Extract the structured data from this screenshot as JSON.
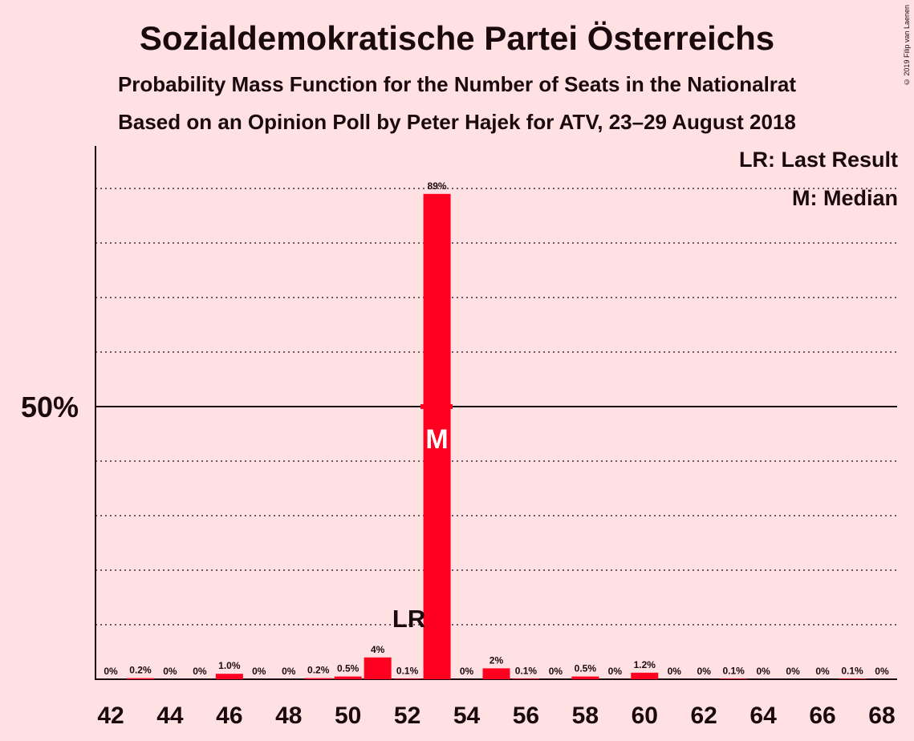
{
  "title": "Sozialdemokratische Partei Österreichs",
  "subtitle1": "Probability Mass Function for the Number of Seats in the Nationalrat",
  "subtitle2": "Based on an Opinion Poll by Peter Hajek for ATV, 23–29 August 2018",
  "copyright": "© 2019 Filip van Laenen",
  "legend": {
    "lr": "LR: Last Result",
    "median": "M: Median"
  },
  "colors": {
    "bar": "#ff0020",
    "background": "#ffe1e4",
    "text": "#1a0a0e"
  },
  "chart_data": {
    "type": "bar",
    "x": [
      42,
      43,
      44,
      45,
      46,
      47,
      48,
      49,
      50,
      51,
      52,
      53,
      54,
      55,
      56,
      57,
      58,
      59,
      60,
      61,
      62,
      63,
      64,
      65,
      66,
      67,
      68
    ],
    "values": [
      0,
      0.2,
      0,
      0,
      1.0,
      0,
      0,
      0.2,
      0.5,
      4,
      0.1,
      89,
      0,
      2,
      0.1,
      0,
      0.5,
      0,
      1.2,
      0,
      0,
      0.1,
      0,
      0,
      0,
      0.1,
      0
    ],
    "labels": [
      "0%",
      "0.2%",
      "0%",
      "0%",
      "1.0%",
      "0%",
      "0%",
      "0.2%",
      "0.5%",
      "4%",
      "0.1%",
      "89%",
      "0%",
      "2%",
      "0.1%",
      "0%",
      "0.5%",
      "0%",
      "1.2%",
      "0%",
      "0%",
      "0.1%",
      "0%",
      "0%",
      "0%",
      "0.1%",
      "0%"
    ],
    "x_tick_labels": [
      "42",
      "44",
      "46",
      "48",
      "50",
      "52",
      "54",
      "56",
      "58",
      "60",
      "62",
      "64",
      "66",
      "68"
    ],
    "y_tick_label": "50%",
    "y_tick_value": 50,
    "ylim": [
      0,
      97
    ],
    "gridlines": [
      10,
      20,
      30,
      40,
      60,
      70,
      80,
      90
    ],
    "last_result": {
      "seat": 52,
      "label": "LR"
    },
    "median": {
      "seat": 53,
      "label": "M"
    }
  }
}
